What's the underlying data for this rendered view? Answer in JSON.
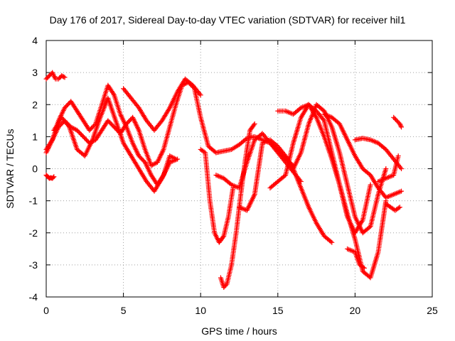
{
  "chart_data": {
    "type": "scatter",
    "title": "Day 176 of 2017, Sidereal Day-to-day VTEC variation (SDTVAR) for receiver hil1",
    "xlabel": "GPS time / hours",
    "ylabel": "SDTVAR / TECUs",
    "xlim": [
      0,
      25
    ],
    "ylim": [
      -4,
      4
    ],
    "xticks": [
      0,
      5,
      10,
      15,
      20,
      25
    ],
    "yticks": [
      -4,
      -3,
      -2,
      -1,
      0,
      1,
      2,
      3,
      4
    ],
    "grid": true,
    "legend": "none",
    "marker": "+",
    "series_color": "#ff0000",
    "series": [
      {
        "name": "trace-1",
        "x": [
          0.0,
          0.2,
          0.4,
          0.6,
          0.8,
          1.0,
          1.2
        ],
        "y": [
          2.8,
          2.9,
          3.0,
          2.8,
          2.8,
          2.9,
          2.85
        ]
      },
      {
        "name": "trace-2",
        "x": [
          0.0,
          0.2,
          0.5,
          0.8,
          1.2,
          1.6,
          2.0,
          2.4,
          2.8,
          3.2,
          3.6,
          4.0,
          4.4,
          4.8,
          5.2,
          5.6,
          6.0,
          6.4,
          6.8,
          7.2,
          7.6,
          8.0,
          8.4,
          8.8,
          9.2,
          9.6,
          10.0,
          10.5,
          11.0,
          11.5,
          12.0,
          12.5,
          13.0,
          13.5,
          14.0,
          14.5,
          15.0,
          15.5,
          16.0
        ],
        "y": [
          0.5,
          0.7,
          1.0,
          1.3,
          1.5,
          1.3,
          1.2,
          1.0,
          0.8,
          0.9,
          1.2,
          1.5,
          1.3,
          1.1,
          1.4,
          1.6,
          1.2,
          0.6,
          0.1,
          0.2,
          0.6,
          1.3,
          2.0,
          2.6,
          2.7,
          2.5,
          1.6,
          0.7,
          0.5,
          0.55,
          0.6,
          0.75,
          0.95,
          1.0,
          0.9,
          0.8,
          0.6,
          0.3,
          0.1
        ]
      },
      {
        "name": "trace-3",
        "x": [
          0.0,
          0.4,
          0.8,
          1.2,
          1.6,
          2.0,
          2.4,
          2.8,
          3.2,
          3.6,
          4.0,
          4.4,
          4.8,
          5.2,
          5.6,
          6.0,
          6.4,
          6.8,
          7.2,
          7.6,
          8.0,
          8.4
        ],
        "y": [
          0.6,
          0.9,
          1.5,
          1.9,
          2.1,
          1.8,
          1.5,
          1.2,
          1.4,
          2.0,
          2.6,
          2.3,
          1.7,
          1.3,
          0.8,
          0.4,
          0.2,
          -0.2,
          -0.5,
          -0.2,
          0.4,
          0.3
        ]
      },
      {
        "name": "trace-4",
        "x": [
          0.0,
          0.1,
          0.2,
          0.3,
          0.4,
          0.5
        ],
        "y": [
          -0.2,
          -0.25,
          -0.3,
          -0.28,
          -0.3,
          -0.25
        ]
      },
      {
        "name": "trace-5",
        "x": [
          0.5,
          1.0,
          1.5,
          2.0,
          2.5,
          3.0,
          3.5,
          4.0,
          4.5,
          5.0,
          5.5,
          6.0,
          6.5,
          7.0,
          7.5,
          8.0,
          8.5
        ],
        "y": [
          1.2,
          1.6,
          1.3,
          0.6,
          0.4,
          0.9,
          1.6,
          2.2,
          1.5,
          0.8,
          0.4,
          0.0,
          -0.4,
          -0.7,
          -0.3,
          0.2,
          0.3
        ]
      },
      {
        "name": "trace-6",
        "x": [
          5.0,
          5.5,
          6.0,
          6.5,
          7.0,
          7.5,
          8.0,
          8.5,
          9.0,
          9.5,
          10.0
        ],
        "y": [
          2.5,
          2.2,
          1.9,
          1.5,
          1.2,
          1.5,
          1.9,
          2.4,
          2.8,
          2.6,
          2.3
        ]
      },
      {
        "name": "trace-7",
        "x": [
          10.0,
          10.3,
          10.6,
          10.9,
          11.2,
          11.5,
          11.8,
          12.1
        ],
        "y": [
          0.6,
          0.5,
          -1.0,
          -2.0,
          -2.3,
          -2.1,
          -1.5,
          -0.6
        ]
      },
      {
        "name": "trace-8",
        "x": [
          11.0,
          11.5,
          12.0,
          12.5,
          13.0,
          13.5,
          14.0,
          14.5,
          15.0,
          15.5,
          16.0,
          16.5
        ],
        "y": [
          -0.2,
          -0.3,
          -0.5,
          -0.6,
          0.2,
          0.9,
          1.1,
          0.8,
          0.5,
          0.2,
          -0.1,
          -0.4
        ]
      },
      {
        "name": "trace-9",
        "x": [
          11.3,
          11.5,
          11.7,
          12.0,
          12.3,
          12.6,
          12.9,
          13.2,
          13.5
        ],
        "y": [
          -3.4,
          -3.7,
          -3.6,
          -3.0,
          -2.0,
          -0.8,
          0.3,
          1.2,
          1.4
        ]
      },
      {
        "name": "trace-10",
        "x": [
          12.5,
          13.0,
          13.5,
          14.0,
          14.5,
          15.0,
          15.5,
          16.0,
          16.5,
          17.0,
          17.5,
          18.0,
          18.5
        ],
        "y": [
          -1.2,
          -1.3,
          -0.8,
          0.8,
          0.9,
          0.7,
          0.4,
          0.0,
          -0.6,
          -1.2,
          -1.7,
          -2.1,
          -2.3
        ]
      },
      {
        "name": "trace-11",
        "x": [
          14.5,
          15.0,
          15.5,
          16.0,
          16.5,
          17.0,
          17.5,
          18.0,
          18.5,
          19.0,
          19.5,
          20.0,
          20.5,
          21.0
        ],
        "y": [
          -0.6,
          -0.4,
          -0.2,
          0.8,
          1.6,
          2.0,
          1.8,
          1.5,
          0.5,
          -0.5,
          -1.5,
          -2.0,
          -1.6,
          -0.5
        ]
      },
      {
        "name": "trace-12",
        "x": [
          15.0,
          15.5,
          16.0,
          16.5,
          17.0,
          17.5,
          18.0,
          18.5,
          19.0,
          19.5,
          20.0,
          20.5,
          21.0,
          21.5,
          22.0
        ],
        "y": [
          1.8,
          1.8,
          1.7,
          1.9,
          2.0,
          1.6,
          1.0,
          0.3,
          -0.5,
          -1.4,
          -2.2,
          -3.2,
          -3.4,
          -2.6,
          -1.0
        ]
      },
      {
        "name": "trace-13",
        "x": [
          16.0,
          16.5,
          17.0,
          17.5,
          18.0,
          18.5,
          19.0,
          19.5,
          20.0,
          20.5,
          21.0,
          21.5,
          22.0
        ],
        "y": [
          0.0,
          0.5,
          1.4,
          2.0,
          1.8,
          1.3,
          0.5,
          -0.5,
          -1.5,
          -2.0,
          -1.8,
          -0.8,
          0.0
        ]
      },
      {
        "name": "trace-14",
        "x": [
          18.0,
          18.5,
          19.0,
          19.5,
          20.0,
          20.5,
          21.0,
          21.5,
          22.0,
          22.5,
          23.0
        ],
        "y": [
          1.7,
          1.6,
          1.4,
          0.9,
          0.4,
          0.0,
          -0.2,
          -0.6,
          -0.9,
          -0.8,
          -0.7
        ]
      },
      {
        "name": "trace-15",
        "x": [
          20.0,
          20.5,
          21.0,
          21.5,
          22.0,
          22.5,
          23.0
        ],
        "y": [
          0.9,
          0.95,
          0.9,
          0.8,
          0.6,
          0.3,
          0.0
        ]
      },
      {
        "name": "trace-16",
        "x": [
          19.5,
          20.0,
          20.3,
          20.6
        ],
        "y": [
          -2.5,
          -2.6,
          -3.0,
          -3.1
        ]
      },
      {
        "name": "trace-17",
        "x": [
          22.5,
          22.7,
          22.9,
          23.0
        ],
        "y": [
          1.6,
          1.5,
          1.4,
          1.3
        ]
      },
      {
        "name": "trace-18",
        "x": [
          22.0,
          22.3,
          22.6,
          22.9
        ],
        "y": [
          -1.1,
          -1.2,
          -1.3,
          -1.2
        ]
      },
      {
        "name": "trace-19",
        "x": [
          21.5,
          22.0,
          22.5,
          22.8
        ],
        "y": [
          -0.4,
          -0.3,
          -0.2,
          0.4
        ]
      }
    ]
  }
}
